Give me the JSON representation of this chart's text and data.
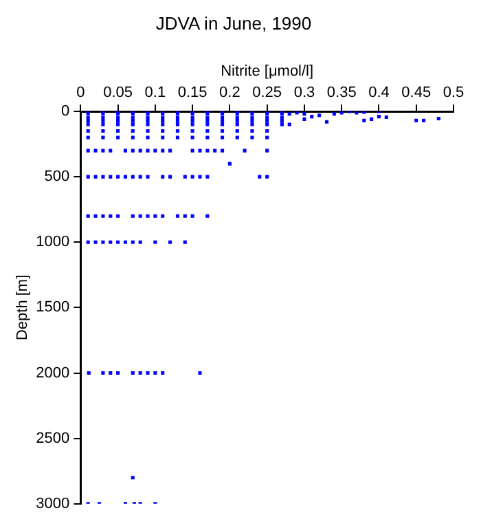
{
  "chart_data": {
    "type": "scatter",
    "title": "JDVA in June, 1990",
    "xlabel": "Nitrite [μmol/l]",
    "ylabel": "Depth [m]",
    "xlim": [
      0,
      0.5
    ],
    "xticks": [
      0,
      0.05,
      0.1,
      0.15,
      0.2,
      0.25,
      0.3,
      0.35,
      0.4,
      0.45,
      0.5
    ],
    "ylim": [
      3000,
      0
    ],
    "yticks": [
      0,
      500,
      1000,
      1500,
      2000,
      2500,
      3000
    ],
    "grid": false,
    "legend": false,
    "marker": "square",
    "series": [
      {
        "color": "#0000ff",
        "x": [
          0.01,
          0.03,
          0.05,
          0.07,
          0.09,
          0.11,
          0.13,
          0.15,
          0.17,
          0.19,
          0.21,
          0.23,
          0.25,
          0.27,
          0.01,
          0.03,
          0.05,
          0.07,
          0.09,
          0.11,
          0.13,
          0.15,
          0.17,
          0.19,
          0.21,
          0.23,
          0.25,
          0.27,
          0.01,
          0.03,
          0.05,
          0.07,
          0.09,
          0.11,
          0.13,
          0.15,
          0.17,
          0.19,
          0.21,
          0.23,
          0.25,
          0.27,
          0.01,
          0.03,
          0.05,
          0.07,
          0.09,
          0.11,
          0.13,
          0.15,
          0.17,
          0.19,
          0.21,
          0.23,
          0.25,
          0.27,
          0.01,
          0.03,
          0.05,
          0.07,
          0.09,
          0.11,
          0.13,
          0.15,
          0.17,
          0.19,
          0.21,
          0.23,
          0.25,
          0.27,
          0.01,
          0.03,
          0.05,
          0.07,
          0.09,
          0.11,
          0.13,
          0.15,
          0.17,
          0.19,
          0.21,
          0.23,
          0.25,
          0.01,
          0.03,
          0.05,
          0.07,
          0.09,
          0.11,
          0.13,
          0.15,
          0.17,
          0.19,
          0.21,
          0.23,
          0.25,
          0.01,
          0.02,
          0.03,
          0.04,
          0.06,
          0.07,
          0.08,
          0.09,
          0.1,
          0.11,
          0.12,
          0.15,
          0.16,
          0.17,
          0.18,
          0.19,
          0.22,
          0.25,
          0.2,
          0.01,
          0.02,
          0.03,
          0.04,
          0.05,
          0.06,
          0.07,
          0.08,
          0.09,
          0.11,
          0.12,
          0.14,
          0.15,
          0.16,
          0.17,
          0.24,
          0.25,
          0.01,
          0.02,
          0.03,
          0.04,
          0.05,
          0.07,
          0.08,
          0.09,
          0.1,
          0.11,
          0.13,
          0.14,
          0.15,
          0.17,
          0.01,
          0.02,
          0.03,
          0.04,
          0.05,
          0.06,
          0.07,
          0.08,
          0.1,
          0.12,
          0.14,
          0.011,
          0.03,
          0.04,
          0.05,
          0.07,
          0.08,
          0.09,
          0.1,
          0.11,
          0.16,
          0.07,
          0.01,
          0.025,
          0.06,
          0.072,
          0.08,
          0.1,
          0.3,
          0.31,
          0.32,
          0.3,
          0.33,
          0.35,
          0.36,
          0.37,
          0.38,
          0.38,
          0.39,
          0.4,
          0.4,
          0.41,
          0.45,
          0.46,
          0.48,
          0.34,
          0.28,
          0.28,
          0.29
        ],
        "values": [
          0,
          0,
          0,
          0,
          0,
          0,
          0,
          0,
          0,
          0,
          0,
          0,
          0,
          0,
          20,
          20,
          20,
          20,
          20,
          20,
          20,
          20,
          20,
          20,
          20,
          20,
          20,
          20,
          50,
          50,
          50,
          50,
          50,
          50,
          50,
          50,
          50,
          50,
          50,
          50,
          50,
          50,
          75,
          75,
          75,
          75,
          75,
          75,
          75,
          75,
          75,
          75,
          75,
          75,
          75,
          75,
          100,
          100,
          100,
          100,
          100,
          100,
          100,
          100,
          100,
          100,
          100,
          100,
          100,
          100,
          150,
          150,
          150,
          150,
          150,
          150,
          150,
          150,
          150,
          150,
          150,
          150,
          150,
          200,
          200,
          200,
          200,
          200,
          200,
          200,
          200,
          200,
          200,
          200,
          200,
          200,
          300,
          300,
          300,
          300,
          300,
          300,
          300,
          300,
          300,
          300,
          300,
          300,
          300,
          300,
          300,
          300,
          300,
          300,
          400,
          500,
          500,
          500,
          500,
          500,
          500,
          500,
          500,
          500,
          500,
          500,
          500,
          500,
          500,
          500,
          500,
          500,
          800,
          800,
          800,
          800,
          800,
          800,
          800,
          800,
          800,
          800,
          800,
          800,
          800,
          800,
          1000,
          1000,
          1000,
          1000,
          1000,
          1000,
          1000,
          1000,
          1000,
          1000,
          1000,
          2000,
          2000,
          2000,
          2000,
          2000,
          2000,
          2000,
          2000,
          2000,
          2000,
          2800,
          3000,
          3000,
          3000,
          3000,
          3000,
          3000,
          20,
          40,
          30,
          60,
          80,
          10,
          0,
          10,
          5,
          70,
          60,
          0,
          40,
          45,
          70,
          70,
          55,
          20,
          100,
          20,
          10
        ]
      }
    ]
  }
}
